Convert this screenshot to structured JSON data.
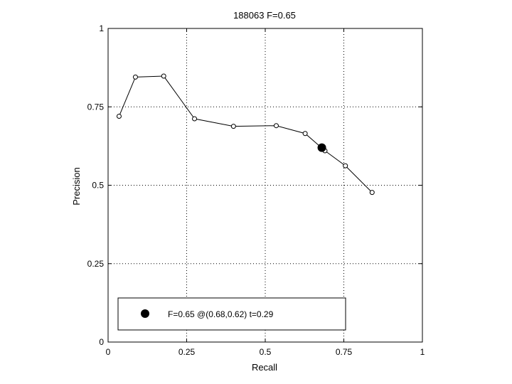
{
  "chart_data": {
    "type": "line",
    "title": "188063 F=0.65",
    "xlabel": "Recall",
    "ylabel": "Precision",
    "xlim": [
      0,
      1
    ],
    "ylim": [
      0,
      1
    ],
    "grid": true,
    "x_ticks": [
      0,
      0.25,
      0.5,
      0.75,
      1
    ],
    "y_ticks": [
      0,
      0.25,
      0.5,
      0.75,
      1
    ],
    "x_tick_labels": [
      "0",
      "0.25",
      "0.5",
      "0.75",
      "1"
    ],
    "y_tick_labels": [
      "0",
      "0.25",
      "0.5",
      "0.75",
      "1"
    ],
    "series": [
      {
        "marker": "open-circle",
        "color": "#000000",
        "points": [
          {
            "x": 0.035,
            "y": 0.72
          },
          {
            "x": 0.087,
            "y": 0.845
          },
          {
            "x": 0.177,
            "y": 0.848
          },
          {
            "x": 0.275,
            "y": 0.712
          },
          {
            "x": 0.399,
            "y": 0.688
          },
          {
            "x": 0.535,
            "y": 0.69
          },
          {
            "x": 0.627,
            "y": 0.665
          },
          {
            "x": 0.69,
            "y": 0.61
          },
          {
            "x": 0.755,
            "y": 0.562
          },
          {
            "x": 0.84,
            "y": 0.477
          }
        ]
      }
    ],
    "highlight_point": {
      "x": 0.68,
      "y": 0.62,
      "marker": "filled-circle",
      "color": "#000000"
    },
    "legend": {
      "placement": "bottom-left",
      "entries": [
        {
          "label": "F=0.65 @(0.68,0.62) t=0.29",
          "marker": "filled-circle"
        }
      ]
    }
  }
}
